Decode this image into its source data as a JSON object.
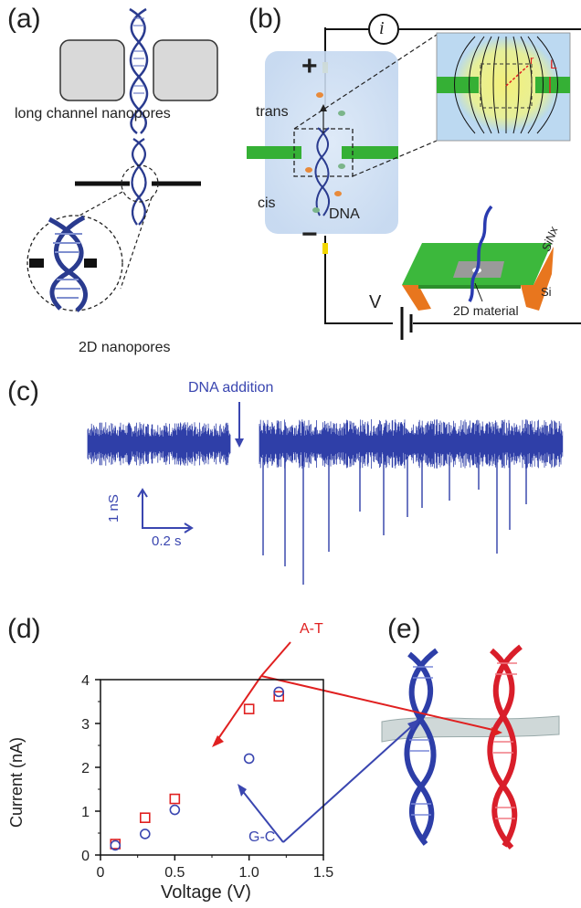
{
  "panels": {
    "a": {
      "label": "(a)",
      "long_channel_caption": "long channel nanopores",
      "twod_caption": "2D nanopores"
    },
    "b": {
      "label": "(b)",
      "current_symbol": "i",
      "plus": "+",
      "minus": "−",
      "trans": "trans",
      "cis": "cis",
      "dna": "DNA",
      "voltage": "V",
      "inset_r": "r",
      "inset_L": "L",
      "sinx": "SiNx",
      "si": "Si",
      "material": "2D material"
    },
    "c": {
      "label": "(c)",
      "annotation": "DNA addition",
      "scale_y": "1 nS",
      "scale_x": "0.2 s"
    },
    "d": {
      "label": "(d)"
    },
    "e": {
      "label": "(e)"
    }
  },
  "colors": {
    "trace": "#2f3fa8",
    "at": "#e02020",
    "gc": "#3a46b0",
    "membrane": "#35b035",
    "box_blue": "#c9dcf2"
  },
  "chart_data": {
    "type": "scatter",
    "xlabel": "Voltage (V)",
    "ylabel": "Current (nA)",
    "xlim": [
      0,
      1.5
    ],
    "ylim": [
      0,
      4
    ],
    "xticks": [
      "0",
      "0.5",
      "1.0",
      "1.5"
    ],
    "yticks": [
      "0",
      "1",
      "2",
      "3",
      "4"
    ],
    "grid": false,
    "series": [
      {
        "name": "A-T",
        "marker": "square",
        "color": "#e02020",
        "x": [
          0.1,
          0.3,
          0.5,
          1.0,
          1.2
        ],
        "y": [
          0.25,
          0.85,
          1.28,
          3.33,
          3.62
        ]
      },
      {
        "name": "G-C",
        "marker": "circle",
        "color": "#3a46b0",
        "x": [
          0.1,
          0.3,
          0.5,
          1.0,
          1.2
        ],
        "y": [
          0.22,
          0.48,
          1.03,
          2.2,
          3.72
        ]
      }
    ]
  }
}
